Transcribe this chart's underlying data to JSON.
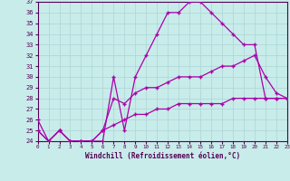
{
  "xlabel": "Windchill (Refroidissement éolien,°C)",
  "bg_color": "#c8ecea",
  "grid_color": "#b0d8d8",
  "line_color": "#aa00aa",
  "x_min": 0,
  "x_max": 23,
  "y_min": 24,
  "y_max": 37,
  "x_ticks": [
    0,
    1,
    2,
    3,
    4,
    5,
    6,
    7,
    8,
    9,
    10,
    11,
    12,
    13,
    14,
    15,
    16,
    17,
    18,
    19,
    20,
    21,
    22,
    23
  ],
  "y_ticks": [
    24,
    25,
    26,
    27,
    28,
    29,
    30,
    31,
    32,
    33,
    34,
    35,
    36,
    37
  ],
  "line1_x": [
    0,
    1,
    2,
    3,
    4,
    5,
    6,
    7,
    8,
    9,
    10,
    11,
    12,
    13,
    14,
    15,
    16,
    17,
    18,
    19,
    20,
    21,
    22,
    23
  ],
  "line1_y": [
    26,
    24,
    25,
    24,
    24,
    24,
    24,
    30,
    25,
    30,
    32,
    34,
    36,
    36,
    37,
    37,
    36,
    35,
    34,
    33,
    33,
    28,
    28,
    28
  ],
  "line2_x": [
    0,
    1,
    2,
    3,
    4,
    5,
    6,
    7,
    8,
    9,
    10,
    11,
    12,
    13,
    14,
    15,
    16,
    17,
    18,
    19,
    20,
    21,
    22,
    23
  ],
  "line2_y": [
    25,
    24,
    25,
    24,
    24,
    24,
    25,
    28,
    27.5,
    28.5,
    29,
    29,
    29.5,
    30,
    30,
    30,
    30.5,
    31,
    31,
    31.5,
    32,
    30,
    28.5,
    28
  ],
  "line3_x": [
    0,
    1,
    2,
    3,
    4,
    5,
    6,
    7,
    8,
    9,
    10,
    11,
    12,
    13,
    14,
    15,
    16,
    17,
    18,
    19,
    20,
    21,
    22,
    23
  ],
  "line3_y": [
    25,
    24,
    25,
    24,
    24,
    24,
    25,
    25.5,
    26,
    26.5,
    26.5,
    27,
    27,
    27.5,
    27.5,
    27.5,
    27.5,
    27.5,
    28,
    28,
    28,
    28,
    28,
    28
  ]
}
